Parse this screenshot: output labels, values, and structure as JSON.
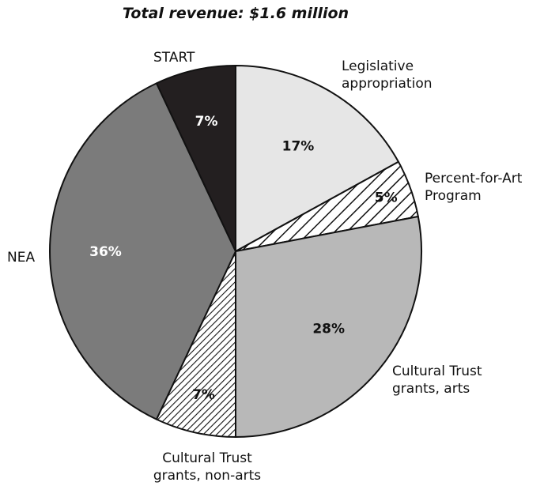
{
  "chart_data": {
    "type": "pie",
    "title": "Total revenue: $1.6 million",
    "categories": [
      "Legislative appropriation",
      "Percent-for-Art Program",
      "Cultural Trust grants, arts",
      "Cultural Trust grants, non-arts",
      "NEA",
      "START"
    ],
    "values": [
      17,
      5,
      28,
      7,
      36,
      7
    ],
    "value_labels": [
      "17%",
      "5%",
      "28%",
      "7%",
      "36%",
      "7%"
    ],
    "label_lines": [
      [
        "Legislative",
        "appropriation"
      ],
      [
        "Percent-for-Art",
        "Program"
      ],
      [
        "Cultural Trust",
        "grants, arts"
      ],
      [
        "Cultural Trust",
        "grants, non-arts"
      ],
      [
        "NEA"
      ],
      [
        "START"
      ]
    ],
    "colors": [
      "#e6e6e6",
      "hatch-light",
      "#b8b8b8",
      "hatch-dense",
      "#7b7b7b",
      "#231f20"
    ],
    "label_colors": [
      "#111111",
      "#111111",
      "#111111",
      "#111111",
      "#ffffff",
      "#ffffff"
    ],
    "start_angle": "12 o'clock",
    "direction": "clockwise",
    "legend": "none"
  }
}
